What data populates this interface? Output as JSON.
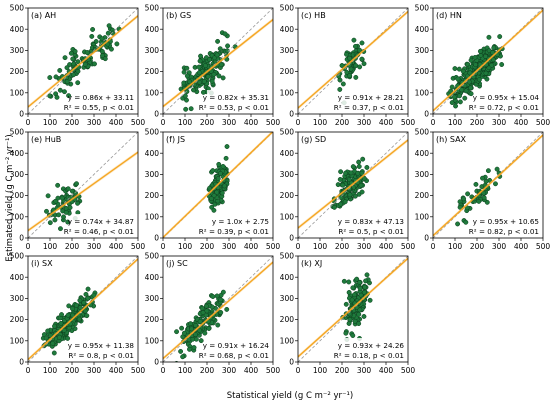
{
  "chart_data": {
    "type": "scatter",
    "xlabel": "Statistical yield (g C m⁻² yr⁻¹)",
    "ylabel": "Estimated yield (g C m⁻² yr⁻¹)",
    "xlim": [
      0,
      500
    ],
    "ylim": [
      0,
      500
    ],
    "ticks": [
      0,
      100,
      200,
      300,
      400,
      500
    ],
    "colors": {
      "point_fill": "#1f7a3c",
      "point_edge": "#0b3d1c",
      "fit_line": "#f5a623",
      "one_to_one": "#999999"
    },
    "panels": [
      {
        "label": "(a) AH",
        "equation": "y = 0.86x + 33.11",
        "r2": "R² = 0.55, p < 0.01",
        "slope": 0.86,
        "intercept": 33.11,
        "r2_value": 0.55,
        "x_range": [
          80,
          440
        ],
        "n": 110
      },
      {
        "label": "(b) GS",
        "equation": "y = 0.82x + 35.31",
        "r2": "R² = 0.53, p < 0.01",
        "slope": 0.82,
        "intercept": 35.31,
        "r2_value": 0.53,
        "x_range": [
          60,
          330
        ],
        "n": 160
      },
      {
        "label": "(c) HB",
        "equation": "y = 0.91x + 28.21",
        "r2": "R² = 0.37, p < 0.01",
        "slope": 0.91,
        "intercept": 28.21,
        "r2_value": 0.37,
        "x_range": [
          170,
          320
        ],
        "n": 60
      },
      {
        "label": "(d) HN",
        "equation": "y = 0.95x + 15.04",
        "r2": "R² = 0.72, p < 0.01",
        "slope": 0.95,
        "intercept": 15.04,
        "r2_value": 0.72,
        "x_range": [
          70,
          320
        ],
        "n": 330
      },
      {
        "label": "(e) HuB",
        "equation": "y = 0.74x + 34.87",
        "r2": "R² = 0.46, p < 0.01",
        "slope": 0.74,
        "intercept": 34.87,
        "r2_value": 0.46,
        "x_range": [
          80,
          250
        ],
        "n": 70
      },
      {
        "label": "(f) JS",
        "equation": "y = 1.0x + 2.75",
        "r2": "R² = 0.39, p < 0.01",
        "slope": 1.0,
        "intercept": 2.75,
        "r2_value": 0.39,
        "x_range": [
          190,
          300
        ],
        "n": 110
      },
      {
        "label": "(g) SD",
        "equation": "y = 0.83x + 47.13",
        "r2": "R² = 0.5, p < 0.01",
        "slope": 0.83,
        "intercept": 47.13,
        "r2_value": 0.5,
        "x_range": [
          150,
          320
        ],
        "n": 130
      },
      {
        "label": "(h) SAX",
        "equation": "y = 0.95x + 10.65",
        "r2": "R² = 0.82, p < 0.01",
        "slope": 0.95,
        "intercept": 10.65,
        "r2_value": 0.82,
        "x_range": [
          90,
          320
        ],
        "n": 50
      },
      {
        "label": "(i) SX",
        "equation": "y = 0.95x + 11.38",
        "r2": "R² = 0.8, p < 0.01",
        "slope": 0.95,
        "intercept": 11.38,
        "r2_value": 0.8,
        "x_range": [
          60,
          320
        ],
        "n": 210
      },
      {
        "label": "(j) SC",
        "equation": "y = 0.91x + 16.24",
        "r2": "R² = 0.68, p < 0.01",
        "slope": 0.91,
        "intercept": 16.24,
        "r2_value": 0.68,
        "x_range": [
          50,
          300
        ],
        "n": 130
      },
      {
        "label": "(k) XJ",
        "equation": "y = 0.93x + 24.26",
        "r2": "R² = 0.18, p < 0.01",
        "slope": 0.93,
        "intercept": 24.26,
        "r2_value": 0.18,
        "x_range": [
          200,
          330
        ],
        "n": 130
      }
    ]
  }
}
